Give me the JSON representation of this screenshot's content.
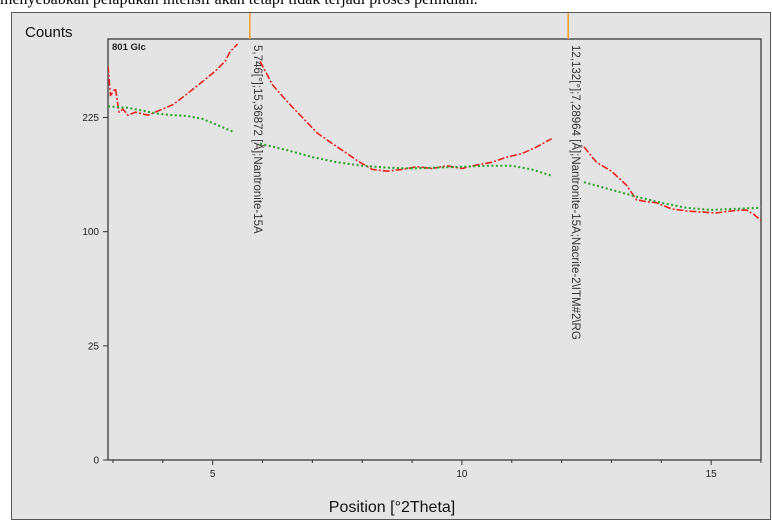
{
  "page": {
    "top_text": "menyebabkan pelapukan intensif akan tetapi tidak terjadi proses pelindian."
  },
  "chart_data": {
    "type": "line",
    "sample_label": "801 Glc",
    "ylabel": "Counts",
    "xlabel": "Position [°2Theta]",
    "x_ticks": [
      5,
      10,
      15
    ],
    "y_ticks": [
      {
        "label": "0",
        "value": 0
      },
      {
        "label": "25",
        "value": 25
      },
      {
        "label": "100",
        "value": 100
      },
      {
        "label": "225",
        "value": 225
      }
    ],
    "y_scale": "sqrt",
    "xlim": [
      2.9,
      16
    ],
    "ylim": [
      0,
      340
    ],
    "grid": false,
    "colors": {
      "measured": "#e8231f",
      "background": "#2aa02a",
      "marker": "#f0a030"
    },
    "series": [
      {
        "style": "red-dashdot",
        "segments": [
          [
            [
              2.9,
              298
            ],
            [
              2.95,
              255
            ],
            [
              3.05,
              265
            ],
            [
              3.12,
              232
            ],
            [
              3.2,
              236
            ],
            [
              3.3,
              228
            ],
            [
              3.45,
              232
            ],
            [
              3.7,
              228
            ],
            [
              3.95,
              235
            ],
            [
              4.2,
              242
            ],
            [
              4.5,
              258
            ],
            [
              4.8,
              275
            ],
            [
              5.05,
              290
            ],
            [
              5.25,
              305
            ],
            [
              5.35,
              320
            ],
            [
              5.5,
              332
            ]
          ],
          [
            [
              5.95,
              305
            ],
            [
              6.2,
              270
            ],
            [
              6.5,
              246
            ],
            [
              6.8,
              225
            ],
            [
              7.1,
              205
            ],
            [
              7.4,
              192
            ],
            [
              7.7,
              180
            ],
            [
              7.9,
              172
            ],
            [
              8.2,
              162
            ],
            [
              8.5,
              160
            ],
            [
              8.8,
              162
            ],
            [
              9.1,
              165
            ],
            [
              9.4,
              163
            ],
            [
              9.7,
              166
            ],
            [
              10.0,
              163
            ],
            [
              10.3,
              167
            ],
            [
              10.6,
              170
            ],
            [
              10.9,
              176
            ],
            [
              11.2,
              180
            ],
            [
              11.5,
              188
            ],
            [
              11.8,
              198
            ]
          ],
          [
            [
              12.45,
              188
            ],
            [
              12.7,
              170
            ],
            [
              13.0,
              160
            ],
            [
              13.3,
              145
            ],
            [
              13.5,
              130
            ],
            [
              13.7,
              128
            ],
            [
              13.9,
              127
            ],
            [
              14.2,
              121
            ],
            [
              14.5,
              119
            ],
            [
              14.8,
              118
            ],
            [
              15.1,
              117
            ],
            [
              15.4,
              119
            ],
            [
              15.7,
              120
            ],
            [
              15.85,
              116
            ],
            [
              16.0,
              110
            ]
          ]
        ]
      },
      {
        "style": "green-dotted",
        "segments": [
          [
            [
              2.9,
              240
            ],
            [
              3.3,
              238
            ],
            [
              3.6,
              234
            ],
            [
              3.9,
              230
            ],
            [
              4.2,
              228
            ],
            [
              4.5,
              227
            ],
            [
              4.8,
              223
            ],
            [
              5.1,
              215
            ],
            [
              5.4,
              207
            ]
          ],
          [
            [
              5.95,
              192
            ],
            [
              6.5,
              184
            ],
            [
              7.0,
              176
            ],
            [
              7.5,
              170
            ],
            [
              8.0,
              166
            ],
            [
              8.5,
              164
            ],
            [
              9.0,
              163
            ],
            [
              9.5,
              164
            ],
            [
              10.0,
              165
            ],
            [
              10.5,
              166
            ],
            [
              11.0,
              166
            ],
            [
              11.4,
              162
            ],
            [
              11.8,
              155
            ]
          ],
          [
            [
              12.45,
              148
            ],
            [
              13.0,
              140
            ],
            [
              13.5,
              133
            ],
            [
              14.0,
              127
            ],
            [
              14.5,
              122
            ],
            [
              15.0,
              120
            ],
            [
              15.5,
              121
            ],
            [
              16.0,
              122
            ]
          ]
        ]
      }
    ],
    "reference_lines": [
      {
        "x": 5.746,
        "label": "5,746[°];15,36872 [Å];Nantronite-15A"
      },
      {
        "x": 12.132,
        "label": "12,132[°];7,28964 [Å];Nantronite-15A;Nacrite-2\\ITM#2\\RG"
      }
    ]
  }
}
